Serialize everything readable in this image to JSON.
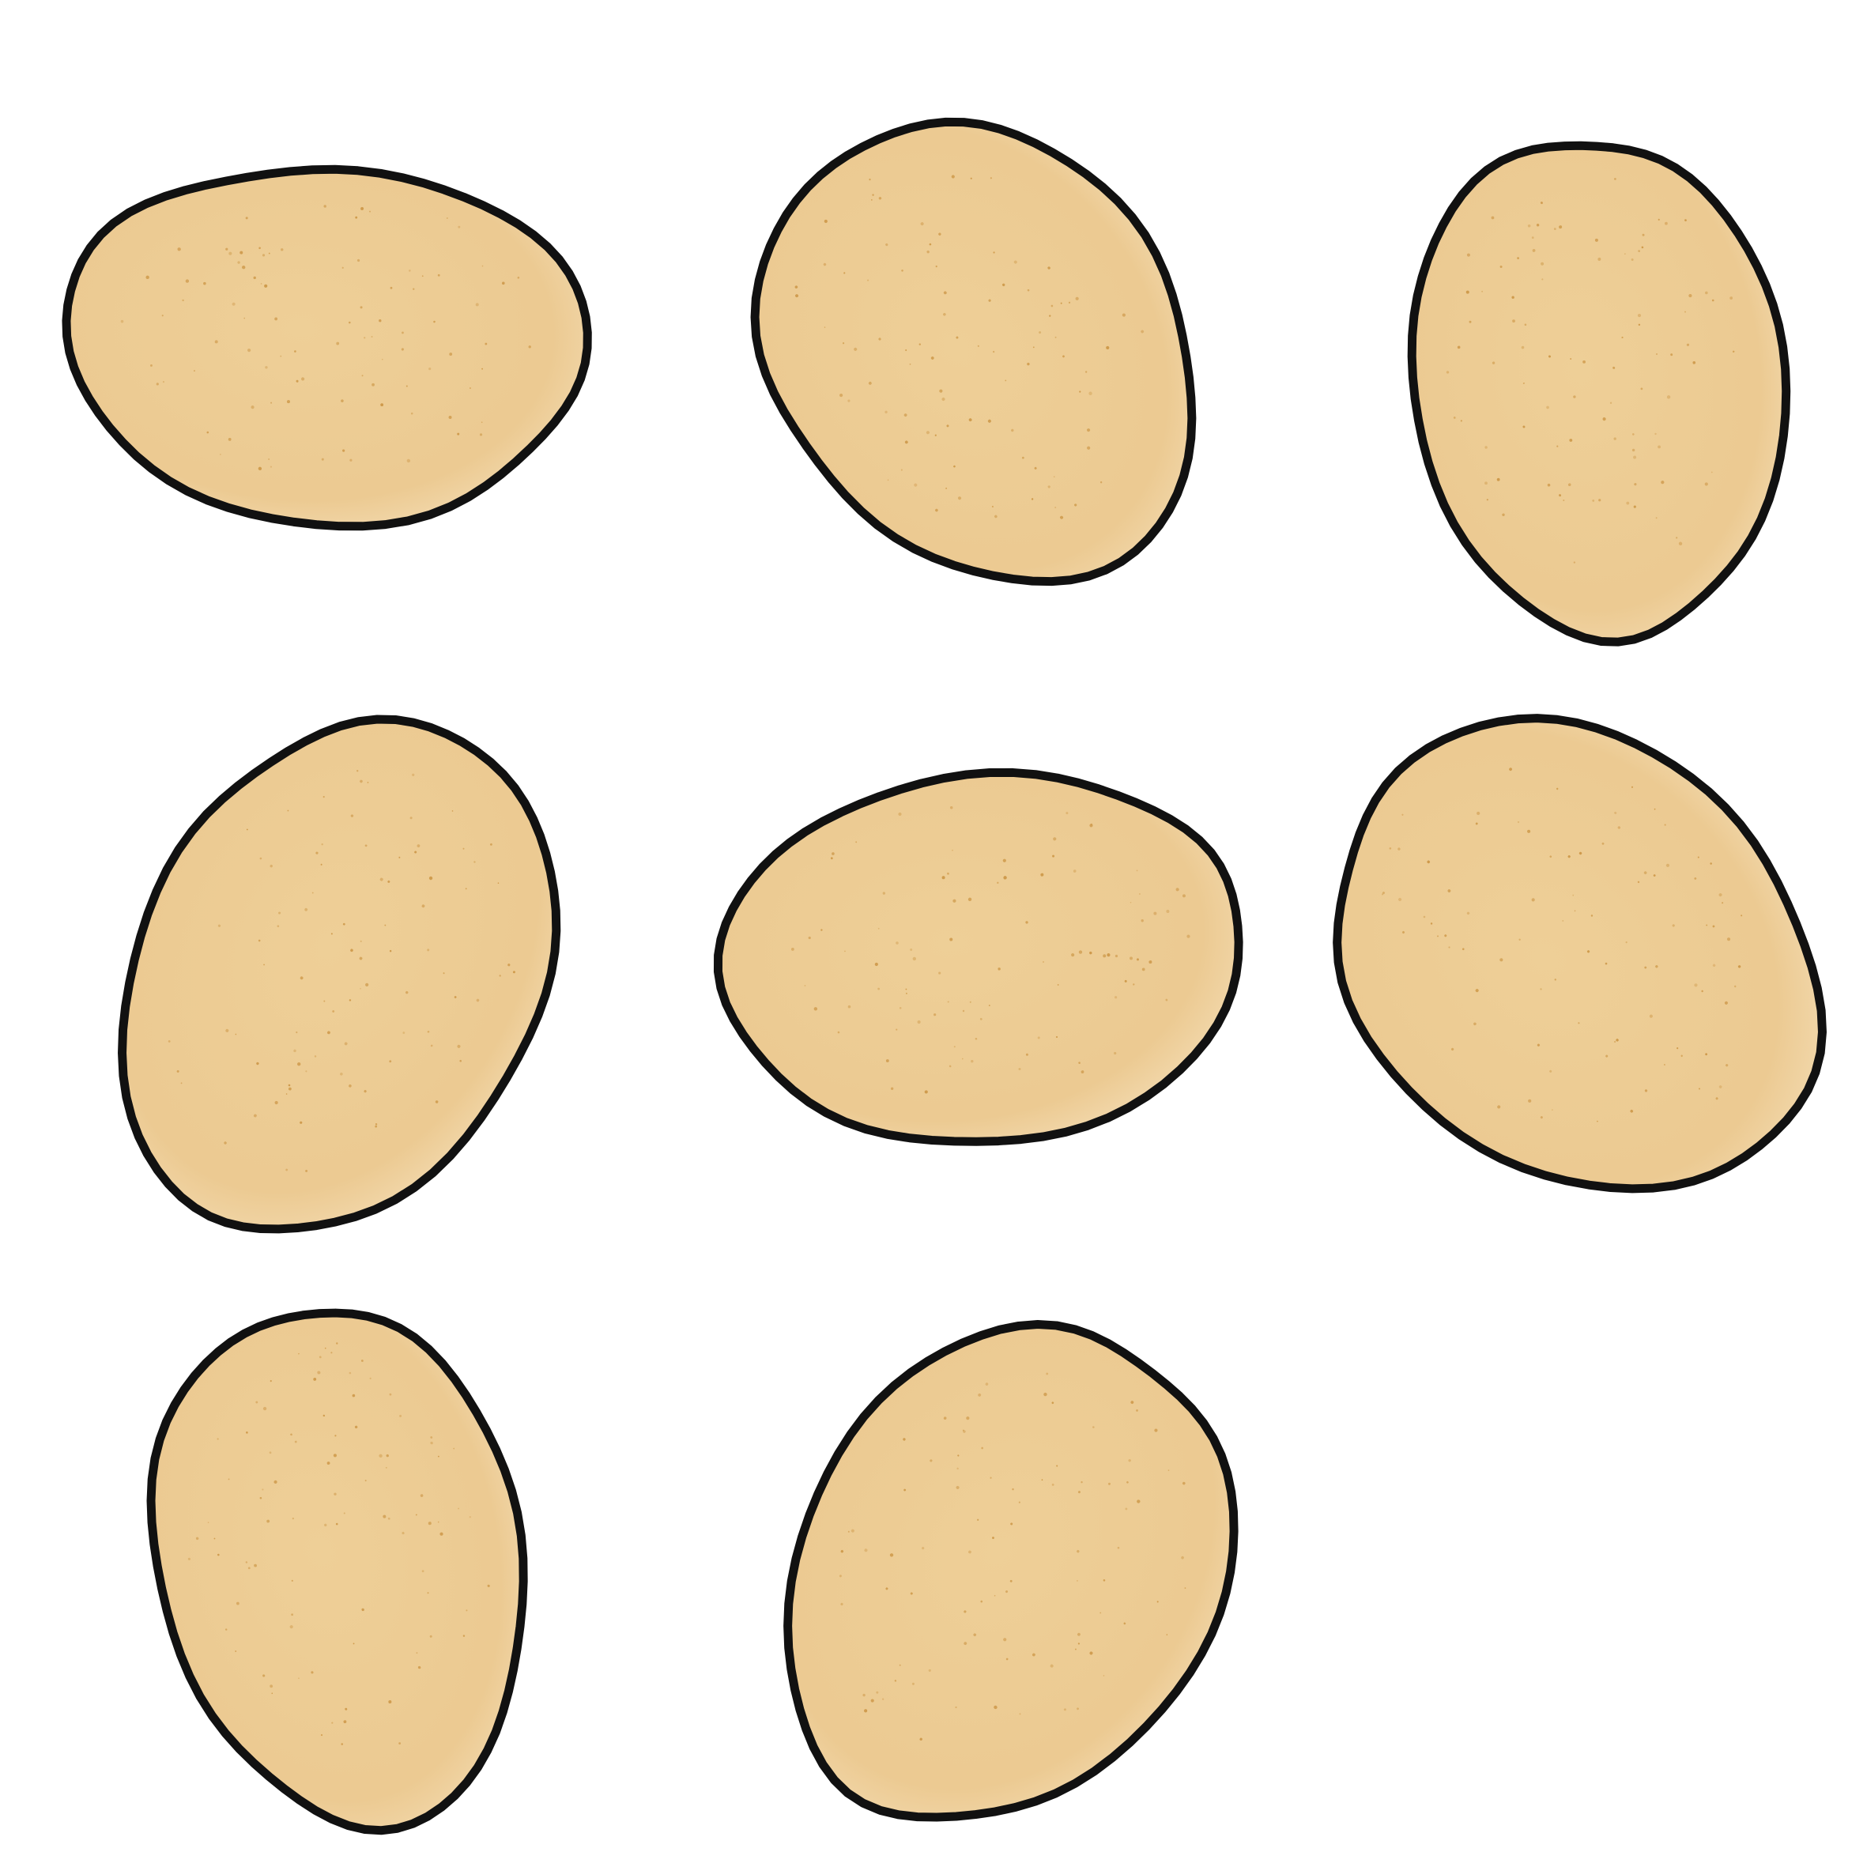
{
  "illustration": {
    "background_color": "#ffffff",
    "object_kind": "egg-shape",
    "object_count": 8,
    "fill_color": "#eecf97",
    "shade_color": "#e4c088",
    "highlight_color": "#fbe9cc",
    "speckle_color": "#c9913f",
    "outline_color": "#111111"
  }
}
